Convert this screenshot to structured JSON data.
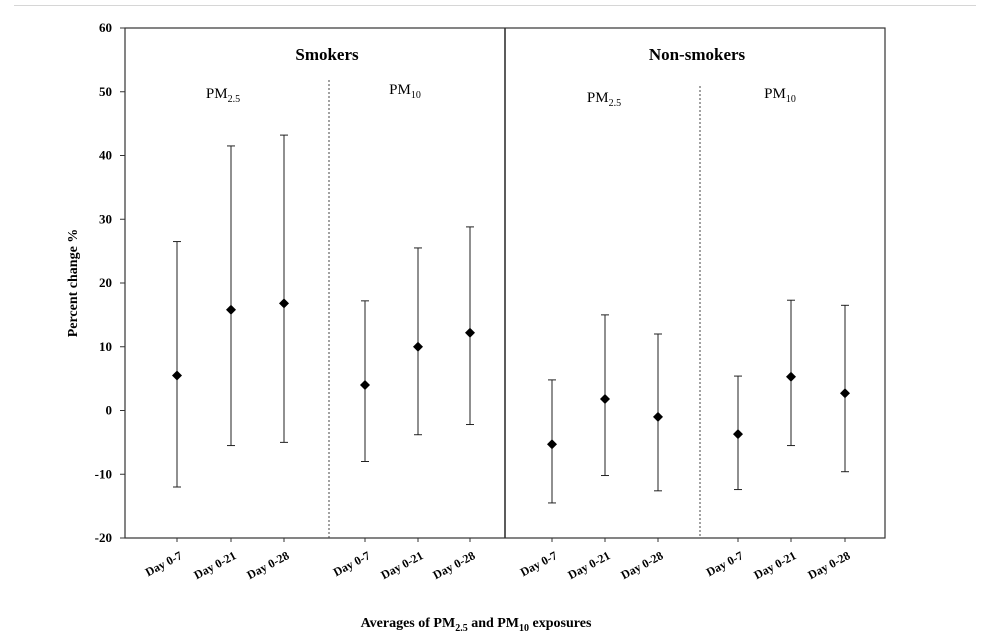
{
  "chart_data": {
    "type": "scatter",
    "ylabel": "Percent change %",
    "xlabel_parts": [
      "Averages of PM",
      "2.5",
      " and PM",
      "10",
      " exposures"
    ],
    "ylim": [
      -20,
      60
    ],
    "yticks": [
      -20,
      -10,
      0,
      10,
      20,
      30,
      40,
      50,
      60
    ],
    "grid": false,
    "groups": [
      {
        "name": "Smokers",
        "panels": [
          {
            "label_main": "PM",
            "label_sub": "2.5",
            "points": [
              {
                "x": "Day 0-7",
                "y": 5.5,
                "lower": -12.0,
                "upper": 26.5
              },
              {
                "x": "Day 0-21",
                "y": 15.8,
                "lower": -5.5,
                "upper": 41.5
              },
              {
                "x": "Day 0-28",
                "y": 16.8,
                "lower": -5.0,
                "upper": 43.2
              }
            ]
          },
          {
            "label_main": "PM",
            "label_sub": "10",
            "points": [
              {
                "x": "Day 0-7",
                "y": 4.0,
                "lower": -8.0,
                "upper": 17.2
              },
              {
                "x": "Day 0-21",
                "y": 10.0,
                "lower": -3.8,
                "upper": 25.5
              },
              {
                "x": "Day 0-28",
                "y": 12.2,
                "lower": -2.2,
                "upper": 28.8
              }
            ]
          }
        ]
      },
      {
        "name": "Non-smokers",
        "panels": [
          {
            "label_main": "PM",
            "label_sub": "2.5",
            "points": [
              {
                "x": "Day 0-7",
                "y": -5.3,
                "lower": -14.5,
                "upper": 4.8
              },
              {
                "x": "Day 0-21",
                "y": 1.8,
                "lower": -10.2,
                "upper": 15.0
              },
              {
                "x": "Day 0-28",
                "y": -1.0,
                "lower": -12.6,
                "upper": 12.0
              }
            ]
          },
          {
            "label_main": "PM",
            "label_sub": "10",
            "points": [
              {
                "x": "Day 0-7",
                "y": -3.7,
                "lower": -12.4,
                "upper": 5.4
              },
              {
                "x": "Day 0-21",
                "y": 5.3,
                "lower": -5.5,
                "upper": 17.3
              },
              {
                "x": "Day 0-28",
                "y": 2.7,
                "lower": -9.6,
                "upper": 16.5
              }
            ]
          }
        ]
      }
    ]
  }
}
